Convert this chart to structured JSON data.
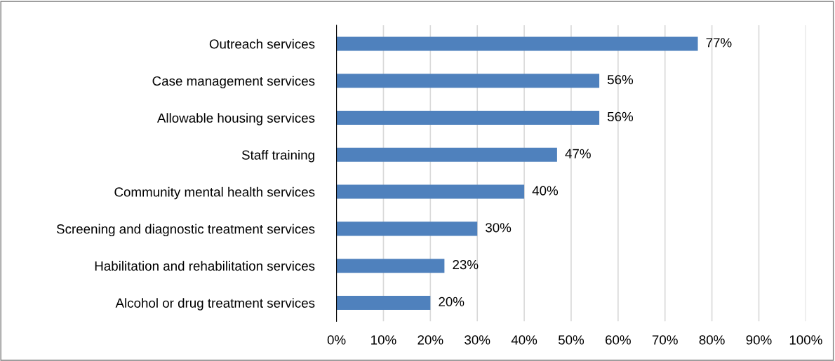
{
  "chart_data": {
    "type": "bar",
    "orientation": "horizontal",
    "categories": [
      "Outreach services",
      "Case management services",
      "Allowable housing services",
      "Staff training",
      "Community mental health services",
      "Screening and diagnostic treatment services",
      "Habilitation and rehabilitation services",
      "Alcohol or drug treatment services"
    ],
    "values": [
      77,
      56,
      56,
      47,
      40,
      30,
      23,
      20
    ],
    "value_labels": [
      "77%",
      "56%",
      "56%",
      "47%",
      "40%",
      "30%",
      "23%",
      "20%"
    ],
    "color": "#4f81bd",
    "xlim": [
      0,
      100
    ],
    "xticks": [
      {
        "value": 0,
        "label": "0%"
      },
      {
        "value": 10,
        "label": "10%"
      },
      {
        "value": 20,
        "label": "20%"
      },
      {
        "value": 30,
        "label": "30%"
      },
      {
        "value": 40,
        "label": "40%"
      },
      {
        "value": 50,
        "label": "50%"
      },
      {
        "value": 60,
        "label": "60%"
      },
      {
        "value": 70,
        "label": "70%"
      },
      {
        "value": 80,
        "label": "80%"
      },
      {
        "value": 90,
        "label": "90%"
      },
      {
        "value": 100,
        "label": "100%"
      }
    ],
    "grid": "x"
  }
}
